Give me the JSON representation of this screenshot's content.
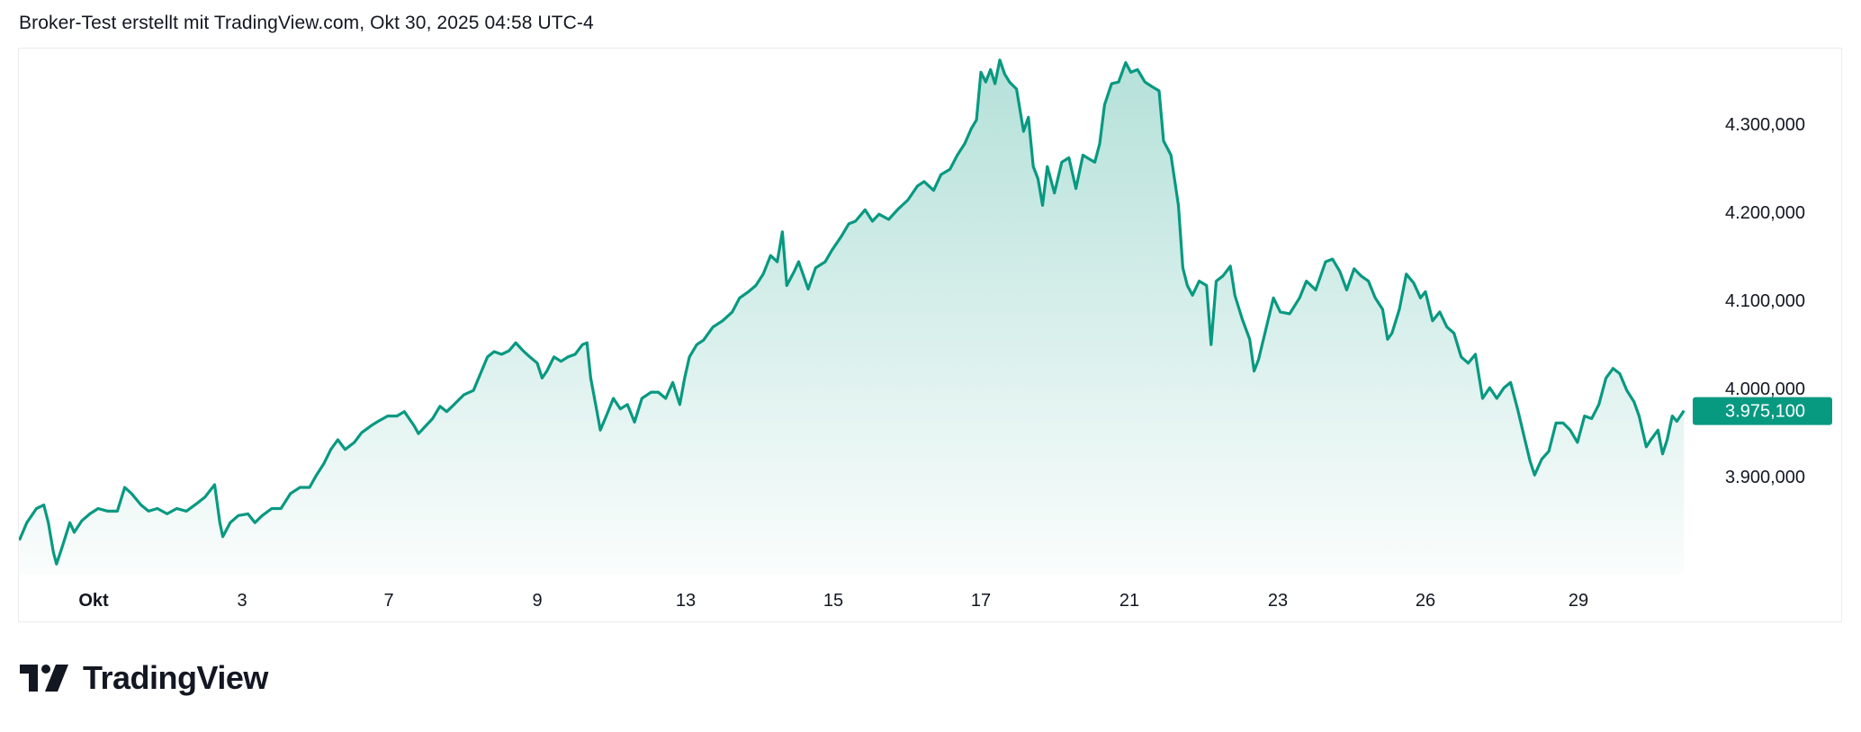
{
  "header": {
    "title": "Broker-Test erstellt mit TradingView.com, Okt 30, 2025 04:58 UTC-4"
  },
  "footer": {
    "logo_text": "TradingView"
  },
  "colors": {
    "line": "#089981",
    "badge": "#089981",
    "text": "#131722"
  },
  "chart_data": {
    "type": "area",
    "title": "",
    "xlabel": "",
    "ylabel": "",
    "ylim": [
      3800,
      4380
    ],
    "grid": false,
    "last_price_label": "3.975,100",
    "last_price": 3975.1,
    "y_ticks": [
      {
        "value": 3900,
        "label": "3.900,000"
      },
      {
        "value": 4000,
        "label": "4.000,000"
      },
      {
        "value": 4100,
        "label": "4.100,000"
      },
      {
        "value": 4200,
        "label": "4.200,000"
      },
      {
        "value": 4300,
        "label": "4.300,000"
      }
    ],
    "x_ticks": [
      {
        "day": 1,
        "label": "Okt"
      },
      {
        "day": 3,
        "label": "3"
      },
      {
        "day": 7,
        "label": "7"
      },
      {
        "day": 9,
        "label": "9"
      },
      {
        "day": 13,
        "label": "13"
      },
      {
        "day": 15,
        "label": "15"
      },
      {
        "day": 17,
        "label": "17"
      },
      {
        "day": 21,
        "label": "21"
      },
      {
        "day": 23,
        "label": "23"
      },
      {
        "day": 26,
        "label": "26"
      },
      {
        "day": 29,
        "label": "29"
      }
    ],
    "series": [
      {
        "points": [
          [
            0.0,
            3828
          ],
          [
            0.1,
            3848
          ],
          [
            0.23,
            3864
          ],
          [
            0.33,
            3868
          ],
          [
            0.39,
            3848
          ],
          [
            0.46,
            3814
          ],
          [
            0.5,
            3801
          ],
          [
            0.58,
            3821
          ],
          [
            0.68,
            3848
          ],
          [
            0.74,
            3837
          ],
          [
            0.84,
            3850
          ],
          [
            0.95,
            3858
          ],
          [
            1.06,
            3864
          ],
          [
            1.19,
            3861
          ],
          [
            1.32,
            3861
          ],
          [
            1.42,
            3888
          ],
          [
            1.51,
            3881
          ],
          [
            1.64,
            3868
          ],
          [
            1.74,
            3861
          ],
          [
            1.86,
            3864
          ],
          [
            1.99,
            3858
          ],
          [
            2.12,
            3864
          ],
          [
            2.25,
            3861
          ],
          [
            2.38,
            3869
          ],
          [
            2.5,
            3877
          ],
          [
            2.63,
            3891
          ],
          [
            2.7,
            3848
          ],
          [
            2.74,
            3832
          ],
          [
            2.84,
            3848
          ],
          [
            2.95,
            3856
          ],
          [
            3.16,
            3858
          ],
          [
            3.35,
            3848
          ],
          [
            3.55,
            3856
          ],
          [
            3.81,
            3864
          ],
          [
            4.06,
            3864
          ],
          [
            4.32,
            3881
          ],
          [
            4.58,
            3888
          ],
          [
            4.84,
            3888
          ],
          [
            5.03,
            3902
          ],
          [
            5.23,
            3915
          ],
          [
            5.42,
            3931
          ],
          [
            5.61,
            3942
          ],
          [
            5.81,
            3931
          ],
          [
            6.06,
            3939
          ],
          [
            6.26,
            3950
          ],
          [
            6.52,
            3958
          ],
          [
            6.71,
            3963
          ],
          [
            6.97,
            3969
          ],
          [
            7.11,
            3969
          ],
          [
            7.21,
            3974
          ],
          [
            7.34,
            3958
          ],
          [
            7.4,
            3949
          ],
          [
            7.5,
            3958
          ],
          [
            7.59,
            3966
          ],
          [
            7.69,
            3980
          ],
          [
            7.78,
            3974
          ],
          [
            7.88,
            3982
          ],
          [
            8.01,
            3993
          ],
          [
            8.14,
            3998
          ],
          [
            8.23,
            4016
          ],
          [
            8.33,
            4036
          ],
          [
            8.42,
            4042
          ],
          [
            8.52,
            4039
          ],
          [
            8.62,
            4043
          ],
          [
            8.71,
            4052
          ],
          [
            8.81,
            4043
          ],
          [
            8.9,
            4036
          ],
          [
            9.0,
            4029
          ],
          [
            9.13,
            4012
          ],
          [
            9.26,
            4020
          ],
          [
            9.45,
            4036
          ],
          [
            9.64,
            4031
          ],
          [
            9.83,
            4036
          ],
          [
            10.02,
            4039
          ],
          [
            10.22,
            4050
          ],
          [
            10.34,
            4052
          ],
          [
            10.44,
            4012
          ],
          [
            10.6,
            3976
          ],
          [
            10.7,
            3953
          ],
          [
            10.86,
            3969
          ],
          [
            11.05,
            3989
          ],
          [
            11.24,
            3977
          ],
          [
            11.43,
            3982
          ],
          [
            11.62,
            3962
          ],
          [
            11.82,
            3989
          ],
          [
            12.07,
            3996
          ],
          [
            12.26,
            3996
          ],
          [
            12.46,
            3989
          ],
          [
            12.65,
            4007
          ],
          [
            12.84,
            3982
          ],
          [
            12.97,
            4012
          ],
          [
            13.05,
            4036
          ],
          [
            13.15,
            4050
          ],
          [
            13.24,
            4055
          ],
          [
            13.37,
            4070
          ],
          [
            13.5,
            4077
          ],
          [
            13.63,
            4087
          ],
          [
            13.73,
            4103
          ],
          [
            13.85,
            4110
          ],
          [
            13.95,
            4117
          ],
          [
            14.05,
            4130
          ],
          [
            14.15,
            4151
          ],
          [
            14.24,
            4144
          ],
          [
            14.31,
            4178
          ],
          [
            14.37,
            4117
          ],
          [
            14.47,
            4133
          ],
          [
            14.53,
            4144
          ],
          [
            14.66,
            4113
          ],
          [
            14.76,
            4137
          ],
          [
            14.89,
            4144
          ],
          [
            14.98,
            4157
          ],
          [
            15.11,
            4173
          ],
          [
            15.21,
            4187
          ],
          [
            15.3,
            4190
          ],
          [
            15.43,
            4203
          ],
          [
            15.53,
            4190
          ],
          [
            15.62,
            4198
          ],
          [
            15.75,
            4192
          ],
          [
            15.88,
            4204
          ],
          [
            16.01,
            4214
          ],
          [
            16.14,
            4230
          ],
          [
            16.23,
            4235
          ],
          [
            16.36,
            4225
          ],
          [
            16.46,
            4243
          ],
          [
            16.58,
            4249
          ],
          [
            16.68,
            4265
          ],
          [
            16.78,
            4278
          ],
          [
            16.87,
            4295
          ],
          [
            16.94,
            4305
          ],
          [
            17.0,
            4359
          ],
          [
            17.13,
            4348
          ],
          [
            17.26,
            4362
          ],
          [
            17.38,
            4346
          ],
          [
            17.51,
            4373
          ],
          [
            17.64,
            4357
          ],
          [
            17.77,
            4348
          ],
          [
            17.96,
            4340
          ],
          [
            18.15,
            4292
          ],
          [
            18.28,
            4308
          ],
          [
            18.41,
            4252
          ],
          [
            18.54,
            4238
          ],
          [
            18.66,
            4208
          ],
          [
            18.79,
            4252
          ],
          [
            18.98,
            4222
          ],
          [
            19.18,
            4257
          ],
          [
            19.37,
            4262
          ],
          [
            19.56,
            4227
          ],
          [
            19.75,
            4265
          ],
          [
            19.94,
            4260
          ],
          [
            20.07,
            4257
          ],
          [
            20.2,
            4278
          ],
          [
            20.33,
            4322
          ],
          [
            20.52,
            4346
          ],
          [
            20.71,
            4348
          ],
          [
            20.9,
            4370
          ],
          [
            21.02,
            4359
          ],
          [
            21.11,
            4362
          ],
          [
            21.21,
            4348
          ],
          [
            21.3,
            4343
          ],
          [
            21.4,
            4338
          ],
          [
            21.46,
            4281
          ],
          [
            21.56,
            4265
          ],
          [
            21.66,
            4208
          ],
          [
            21.72,
            4137
          ],
          [
            21.78,
            4117
          ],
          [
            21.85,
            4106
          ],
          [
            21.94,
            4122
          ],
          [
            22.04,
            4117
          ],
          [
            22.1,
            4050
          ],
          [
            22.17,
            4122
          ],
          [
            22.26,
            4128
          ],
          [
            22.36,
            4139
          ],
          [
            22.42,
            4106
          ],
          [
            22.52,
            4079
          ],
          [
            22.62,
            4056
          ],
          [
            22.68,
            4020
          ],
          [
            22.74,
            4033
          ],
          [
            22.84,
            4068
          ],
          [
            22.94,
            4103
          ],
          [
            23.05,
            4087
          ],
          [
            23.24,
            4085
          ],
          [
            23.44,
            4103
          ],
          [
            23.58,
            4122
          ],
          [
            23.77,
            4112
          ],
          [
            23.97,
            4144
          ],
          [
            24.11,
            4147
          ],
          [
            24.26,
            4133
          ],
          [
            24.4,
            4112
          ],
          [
            24.55,
            4136
          ],
          [
            24.69,
            4128
          ],
          [
            24.84,
            4122
          ],
          [
            24.98,
            4103
          ],
          [
            25.13,
            4090
          ],
          [
            25.23,
            4056
          ],
          [
            25.32,
            4063
          ],
          [
            25.47,
            4090
          ],
          [
            25.61,
            4130
          ],
          [
            25.76,
            4120
          ],
          [
            25.9,
            4103
          ],
          [
            26.0,
            4110
          ],
          [
            26.14,
            4077
          ],
          [
            26.28,
            4087
          ],
          [
            26.42,
            4070
          ],
          [
            26.56,
            4063
          ],
          [
            26.7,
            4036
          ],
          [
            26.84,
            4029
          ],
          [
            26.98,
            4039
          ],
          [
            27.12,
            3989
          ],
          [
            27.26,
            4001
          ],
          [
            27.4,
            3989
          ],
          [
            27.54,
            4001
          ],
          [
            27.67,
            4007
          ],
          [
            27.81,
            3976
          ],
          [
            27.95,
            3942
          ],
          [
            28.05,
            3918
          ],
          [
            28.14,
            3902
          ],
          [
            28.28,
            3920
          ],
          [
            28.42,
            3929
          ],
          [
            28.56,
            3961
          ],
          [
            28.7,
            3961
          ],
          [
            28.84,
            3953
          ],
          [
            28.98,
            3939
          ],
          [
            29.12,
            3969
          ],
          [
            29.26,
            3966
          ],
          [
            29.4,
            3982
          ],
          [
            29.54,
            4012
          ],
          [
            29.68,
            4023
          ],
          [
            29.81,
            4017
          ],
          [
            29.95,
            3998
          ],
          [
            30.09,
            3985
          ],
          [
            30.19,
            3969
          ],
          [
            30.33,
            3934
          ],
          [
            30.42,
            3942
          ],
          [
            30.56,
            3953
          ],
          [
            30.65,
            3926
          ],
          [
            30.74,
            3942
          ],
          [
            30.84,
            3969
          ],
          [
            30.93,
            3963
          ],
          [
            31.07,
            3975.1
          ]
        ]
      }
    ]
  }
}
